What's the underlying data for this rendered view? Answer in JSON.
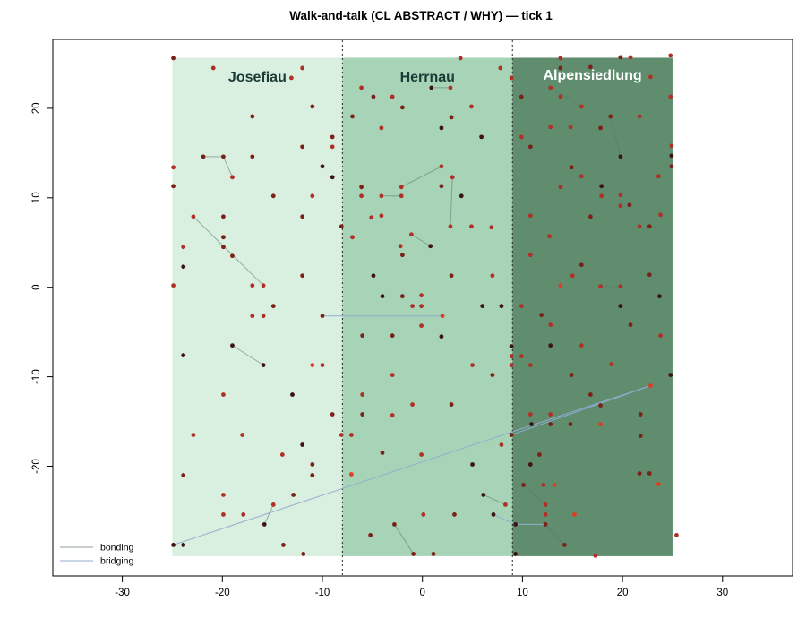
{
  "title": "Walk-and-talk (CL ABSTRACT / WHY) — tick 1",
  "chart_data": {
    "type": "scatter",
    "title": "Walk-and-talk (CL ABSTRACT / WHY) — tick 1",
    "xlabel": "",
    "ylabel": "",
    "xlim": [
      -37,
      37
    ],
    "ylim": [
      -32.2,
      27.7
    ],
    "x_ticks": [
      -30,
      -20,
      -10,
      0,
      10,
      20,
      30
    ],
    "y_ticks": [
      -20,
      -10,
      0,
      10,
      20
    ],
    "grid": false,
    "region_band": {
      "y_top": 25.65,
      "y_bottom": -30.05
    },
    "districts": [
      {
        "name": "Josefiau",
        "x0": -25,
        "x1": -8,
        "fill": "#d9efdf",
        "label_color": "#1d3b36",
        "label_x": -16.5,
        "label_y": 23.0
      },
      {
        "name": "Herrnau",
        "x0": -8,
        "x1": 9,
        "fill": "#a7d3b6",
        "label_color": "#1d3b36",
        "label_x": 0.5,
        "label_y": 23.0
      },
      {
        "name": "Alpensiedlung",
        "x0": 9,
        "x1": 25,
        "fill": "#5f8d6e",
        "label_color": "#ffffff",
        "label_x": 17.0,
        "label_y": 23.2
      }
    ],
    "boundary_lines_x": [
      -8,
      9
    ],
    "boundary_line_color": "#262626",
    "colors": {
      "br": "#e23b24",
      "md": "#b03028",
      "dk": "#7c2018",
      "bk": "#3f1410",
      "bonding": "#5a7868",
      "bridging": "#92aed2",
      "box": "#000000"
    },
    "legend": {
      "items": [
        {
          "label": "bonding",
          "color": "#a9b5ad"
        },
        {
          "label": "bridging",
          "color": "#a9bedc"
        }
      ]
    },
    "edges_bonding": [
      [
        -21.9,
        14.6,
        -19.9,
        14.6
      ],
      [
        -19.9,
        14.6,
        -19.0,
        12.3
      ],
      [
        -22.9,
        7.9,
        -15.9,
        0.2
      ],
      [
        2.8,
        22.3,
        0.9,
        22.3
      ],
      [
        12.8,
        22.3,
        15.9,
        20.2
      ],
      [
        18.8,
        19.1,
        19.8,
        14.6
      ],
      [
        1.9,
        13.5,
        -2.1,
        11.2
      ],
      [
        3.0,
        12.3,
        2.8,
        6.8
      ],
      [
        -4.1,
        10.2,
        -2.1,
        10.2
      ],
      [
        -1.1,
        5.9,
        0.8,
        4.6
      ],
      [
        -19.0,
        -6.5,
        -15.9,
        -8.7
      ],
      [
        17.8,
        0.1,
        19.8,
        0.1
      ],
      [
        -14.9,
        -24.3,
        -15.8,
        -26.5
      ],
      [
        6.1,
        -23.2,
        8.3,
        -24.3
      ],
      [
        -2.8,
        -26.5,
        -0.9,
        -29.8
      ],
      [
        10.1,
        -22.1,
        12.3,
        -24.3
      ],
      [
        12.3,
        -26.5,
        14.2,
        -28.8
      ]
    ],
    "edges_bridging": [
      [
        -24.9,
        -28.8,
        22.8,
        -11.0
      ],
      [
        8.9,
        -16.5,
        22.8,
        -11.0
      ],
      [
        -10.0,
        -3.2,
        2.0,
        -3.2
      ],
      [
        7.1,
        -25.4,
        9.3,
        -26.5
      ],
      [
        9.3,
        -26.5,
        12.3,
        -26.5
      ]
    ],
    "points": [
      [
        -24.9,
        25.6,
        "dk"
      ],
      [
        -20.9,
        24.5,
        "md"
      ],
      [
        -12.0,
        24.5,
        "md"
      ],
      [
        -13.1,
        23.4,
        "md"
      ],
      [
        -6.1,
        22.3,
        "md"
      ],
      [
        -4.9,
        21.3,
        "dk"
      ],
      [
        -11.0,
        20.2,
        "dk"
      ],
      [
        -17.0,
        19.1,
        "dk"
      ],
      [
        -7.0,
        19.1,
        "dk"
      ],
      [
        -9.0,
        16.8,
        "dk"
      ],
      [
        -12.0,
        15.7,
        "dk"
      ],
      [
        -9.0,
        15.7,
        "md"
      ],
      [
        -21.9,
        14.6,
        "dk"
      ],
      [
        -19.9,
        14.6,
        "dk"
      ],
      [
        -17.0,
        14.6,
        "dk"
      ],
      [
        -24.9,
        13.4,
        "md"
      ],
      [
        -10.0,
        13.5,
        "bk"
      ],
      [
        -19.0,
        12.3,
        "md"
      ],
      [
        -9.0,
        12.3,
        "bk"
      ],
      [
        -24.9,
        11.3,
        "dk"
      ],
      [
        -6.1,
        11.2,
        "dk"
      ],
      [
        -6.1,
        10.2,
        "md"
      ],
      [
        -14.9,
        10.2,
        "dk"
      ],
      [
        -11.0,
        10.2,
        "md"
      ],
      [
        -22.9,
        7.9,
        "md"
      ],
      [
        -19.9,
        7.9,
        "dk"
      ],
      [
        -12.0,
        7.9,
        "dk"
      ],
      [
        -5.1,
        7.8,
        "md"
      ],
      [
        -8.1,
        6.8,
        "dk"
      ],
      [
        -7.0,
        5.6,
        "md"
      ],
      [
        -19.9,
        5.6,
        "dk"
      ],
      [
        -23.9,
        4.5,
        "md"
      ],
      [
        -19.9,
        4.5,
        "dk"
      ],
      [
        -19.0,
        3.5,
        "dk"
      ],
      [
        3.8,
        25.6,
        "md"
      ],
      [
        7.8,
        24.5,
        "md"
      ],
      [
        13.8,
        25.6,
        "md"
      ],
      [
        13.8,
        24.5,
        "dk"
      ],
      [
        8.9,
        23.4,
        "md"
      ],
      [
        2.8,
        22.3,
        "md"
      ],
      [
        0.9,
        22.3,
        "bk"
      ],
      [
        -3.0,
        21.3,
        "md"
      ],
      [
        -2.0,
        20.1,
        "dk"
      ],
      [
        4.9,
        20.2,
        "md"
      ],
      [
        9.9,
        21.3,
        "dk"
      ],
      [
        12.8,
        22.3,
        "md"
      ],
      [
        2.9,
        19.0,
        "dk"
      ],
      [
        -4.1,
        17.8,
        "md"
      ],
      [
        1.9,
        17.8,
        "bk"
      ],
      [
        5.9,
        16.8,
        "bk"
      ],
      [
        9.9,
        16.8,
        "md"
      ],
      [
        12.8,
        17.9,
        "md"
      ],
      [
        14.8,
        17.9,
        "md"
      ],
      [
        10.8,
        15.7,
        "dk"
      ],
      [
        1.9,
        13.5,
        "md"
      ],
      [
        3.0,
        12.3,
        "md"
      ],
      [
        -2.1,
        11.2,
        "md"
      ],
      [
        1.9,
        11.3,
        "dk"
      ],
      [
        14.9,
        13.4,
        "dk"
      ],
      [
        15.9,
        12.4,
        "md"
      ],
      [
        -4.1,
        10.2,
        "md"
      ],
      [
        -2.1,
        10.2,
        "md"
      ],
      [
        3.9,
        10.2,
        "bk"
      ],
      [
        13.8,
        11.2,
        "md"
      ],
      [
        -4.1,
        8.0,
        "md"
      ],
      [
        10.8,
        8.0,
        "md"
      ],
      [
        2.8,
        6.8,
        "md"
      ],
      [
        4.9,
        6.8,
        "md"
      ],
      [
        6.9,
        6.7,
        "md"
      ],
      [
        -1.1,
        5.9,
        "md"
      ],
      [
        12.7,
        5.7,
        "md"
      ],
      [
        -2.2,
        4.6,
        "md"
      ],
      [
        0.8,
        4.6,
        "bk"
      ],
      [
        -2.0,
        3.6,
        "dk"
      ],
      [
        10.8,
        3.6,
        "md"
      ],
      [
        19.8,
        25.7,
        "dk"
      ],
      [
        20.8,
        25.7,
        "md"
      ],
      [
        24.8,
        25.9,
        "md"
      ],
      [
        16.8,
        24.6,
        "dk"
      ],
      [
        22.8,
        23.5,
        "md"
      ],
      [
        24.8,
        21.3,
        "md"
      ],
      [
        15.9,
        20.2,
        "md"
      ],
      [
        18.8,
        19.1,
        "dk"
      ],
      [
        21.7,
        19.1,
        "md"
      ],
      [
        17.8,
        17.8,
        "dk"
      ],
      [
        24.9,
        15.8,
        "md"
      ],
      [
        24.9,
        14.7,
        "bk"
      ],
      [
        24.9,
        13.5,
        "dk"
      ],
      [
        19.8,
        14.6,
        "bk"
      ],
      [
        23.6,
        12.4,
        "md"
      ],
      [
        17.9,
        11.3,
        "bk"
      ],
      [
        17.9,
        10.2,
        "md"
      ],
      [
        19.8,
        10.3,
        "md"
      ],
      [
        19.8,
        9.1,
        "md"
      ],
      [
        20.7,
        9.2,
        "dk"
      ],
      [
        16.8,
        7.9,
        "dk"
      ],
      [
        23.8,
        8.1,
        "md"
      ],
      [
        21.7,
        6.8,
        "md"
      ],
      [
        22.7,
        6.8,
        "dk"
      ],
      [
        15.9,
        2.5,
        "dk"
      ],
      [
        13.8,
        21.3,
        "md"
      ],
      [
        -23.9,
        2.3,
        "bk"
      ],
      [
        -12.0,
        1.3,
        "dk"
      ],
      [
        -4.9,
        1.3,
        "bk"
      ],
      [
        -24.9,
        0.2,
        "md"
      ],
      [
        -17.0,
        0.2,
        "md"
      ],
      [
        -15.9,
        0.2,
        "md"
      ],
      [
        -14.9,
        -2.1,
        "dk"
      ],
      [
        -17.0,
        -3.2,
        "md"
      ],
      [
        -15.9,
        -3.2,
        "md"
      ],
      [
        -10.0,
        -3.2,
        "dk"
      ],
      [
        -6.0,
        -5.4,
        "dk"
      ],
      [
        -19.0,
        -6.5,
        "bk"
      ],
      [
        -23.9,
        -7.6,
        "bk"
      ],
      [
        -15.9,
        -8.7,
        "bk"
      ],
      [
        -11.0,
        -8.7,
        "br"
      ],
      [
        -10.0,
        -8.7,
        "md"
      ],
      [
        -19.9,
        -12.0,
        "md"
      ],
      [
        -13.0,
        -12.0,
        "bk"
      ],
      [
        -6.0,
        -12.0,
        "md"
      ],
      [
        -6.0,
        -14.2,
        "dk"
      ],
      [
        -9.0,
        -14.2,
        "dk"
      ],
      [
        -22.9,
        -16.5,
        "md"
      ],
      [
        -18.0,
        -16.5,
        "md"
      ],
      [
        -8.1,
        -16.5,
        "md"
      ],
      [
        -7.1,
        -16.5,
        "md"
      ],
      [
        -12.0,
        -17.6,
        "bk"
      ],
      [
        -14.0,
        -18.7,
        "md"
      ],
      [
        -11.0,
        -19.8,
        "dk"
      ],
      [
        -23.9,
        -21.0,
        "dk"
      ],
      [
        -11.0,
        -21.0,
        "dk"
      ],
      [
        -7.1,
        -20.9,
        "br"
      ],
      [
        2.9,
        1.3,
        "dk"
      ],
      [
        7.0,
        1.3,
        "md"
      ],
      [
        15.0,
        1.3,
        "md"
      ],
      [
        13.8,
        0.2,
        "br"
      ],
      [
        -4.0,
        -1.0,
        "bk"
      ],
      [
        -2.0,
        -1.0,
        "dk"
      ],
      [
        -0.1,
        -0.9,
        "md"
      ],
      [
        -1.0,
        -2.1,
        "md"
      ],
      [
        -0.1,
        -2.1,
        "md"
      ],
      [
        6.0,
        -2.1,
        "bk"
      ],
      [
        7.9,
        -2.1,
        "bk"
      ],
      [
        9.9,
        -2.1,
        "md"
      ],
      [
        2.0,
        -3.2,
        "br"
      ],
      [
        11.9,
        -3.1,
        "dk"
      ],
      [
        -0.1,
        -4.3,
        "md"
      ],
      [
        12.8,
        -4.2,
        "md"
      ],
      [
        -3.0,
        -5.4,
        "dk"
      ],
      [
        1.9,
        -5.5,
        "bk"
      ],
      [
        8.9,
        -6.6,
        "bk"
      ],
      [
        12.8,
        -6.5,
        "bk"
      ],
      [
        15.9,
        -6.5,
        "md"
      ],
      [
        8.9,
        -7.7,
        "md"
      ],
      [
        9.9,
        -7.7,
        "md"
      ],
      [
        8.9,
        -8.7,
        "md"
      ],
      [
        10.8,
        -8.7,
        "md"
      ],
      [
        5.0,
        -8.7,
        "md"
      ],
      [
        -3.0,
        -9.8,
        "md"
      ],
      [
        7.0,
        -9.8,
        "dk"
      ],
      [
        14.9,
        -9.8,
        "dk"
      ],
      [
        16.8,
        -12.0,
        "dk"
      ],
      [
        -1.0,
        -13.1,
        "md"
      ],
      [
        2.9,
        -13.1,
        "dk"
      ],
      [
        -3.0,
        -14.3,
        "md"
      ],
      [
        10.8,
        -14.2,
        "md"
      ],
      [
        12.8,
        -14.2,
        "md"
      ],
      [
        10.9,
        -15.3,
        "bk"
      ],
      [
        12.8,
        -15.3,
        "dk"
      ],
      [
        14.8,
        -15.3,
        "dk"
      ],
      [
        8.9,
        -16.5,
        "dk"
      ],
      [
        7.9,
        -17.6,
        "md"
      ],
      [
        -4.0,
        -18.5,
        "dk"
      ],
      [
        -0.1,
        -18.7,
        "md"
      ],
      [
        11.7,
        -18.7,
        "dk"
      ],
      [
        5.0,
        -19.8,
        "bk"
      ],
      [
        10.8,
        -19.8,
        "bk"
      ],
      [
        22.7,
        1.4,
        "dk"
      ],
      [
        17.8,
        0.1,
        "md"
      ],
      [
        19.8,
        0.1,
        "md"
      ],
      [
        23.7,
        -1.0,
        "bk"
      ],
      [
        19.8,
        -2.1,
        "bk"
      ],
      [
        20.8,
        -4.2,
        "dk"
      ],
      [
        23.8,
        -5.4,
        "md"
      ],
      [
        18.9,
        -8.6,
        "md"
      ],
      [
        24.8,
        -9.8,
        "bk"
      ],
      [
        22.8,
        -11.0,
        "br"
      ],
      [
        17.8,
        -13.2,
        "dk"
      ],
      [
        21.8,
        -14.2,
        "dk"
      ],
      [
        17.8,
        -15.3,
        "br"
      ],
      [
        21.8,
        -16.6,
        "dk"
      ],
      [
        21.7,
        -20.8,
        "dk"
      ],
      [
        22.7,
        -20.8,
        "dk"
      ],
      [
        23.6,
        -22.0,
        "br"
      ],
      [
        -19.9,
        -23.2,
        "md"
      ],
      [
        -12.9,
        -23.2,
        "dk"
      ],
      [
        -14.9,
        -24.3,
        "md"
      ],
      [
        -19.9,
        -25.4,
        "md"
      ],
      [
        -17.9,
        -25.4,
        "md"
      ],
      [
        -15.8,
        -26.5,
        "bk"
      ],
      [
        -13.9,
        -28.8,
        "dk"
      ],
      [
        -24.9,
        -28.8,
        "bk"
      ],
      [
        -23.9,
        -28.8,
        "bk"
      ],
      [
        -11.9,
        -29.8,
        "dk"
      ],
      [
        -5.2,
        -27.7,
        "dk"
      ],
      [
        -2.8,
        -26.5,
        "dk"
      ],
      [
        -0.9,
        -29.8,
        "dk"
      ],
      [
        1.1,
        -29.8,
        "dk"
      ],
      [
        0.1,
        -25.4,
        "md"
      ],
      [
        3.2,
        -25.4,
        "dk"
      ],
      [
        6.1,
        -23.2,
        "bk"
      ],
      [
        8.3,
        -24.3,
        "md"
      ],
      [
        7.1,
        -25.4,
        "bk"
      ],
      [
        9.3,
        -26.5,
        "bk"
      ],
      [
        10.1,
        -22.1,
        "dk"
      ],
      [
        12.1,
        -22.1,
        "md"
      ],
      [
        13.2,
        -22.1,
        "br"
      ],
      [
        12.3,
        -24.3,
        "md"
      ],
      [
        12.3,
        -25.4,
        "md"
      ],
      [
        15.2,
        -25.4,
        "br"
      ],
      [
        12.3,
        -26.5,
        "dk"
      ],
      [
        14.2,
        -28.8,
        "dk"
      ],
      [
        9.3,
        -29.8,
        "bk"
      ],
      [
        17.3,
        -30.0,
        "md"
      ],
      [
        25.4,
        -27.7,
        "md"
      ]
    ]
  }
}
